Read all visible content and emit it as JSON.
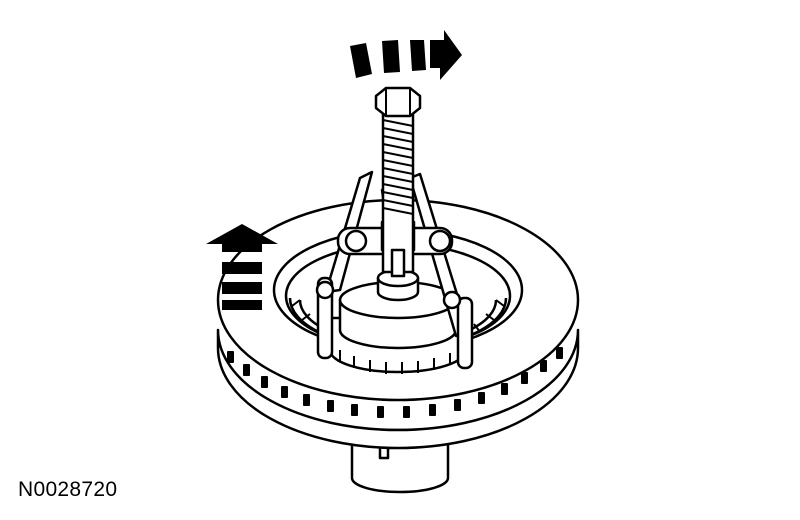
{
  "figure": {
    "id_label": "N0028720"
  },
  "colors": {
    "line": "#000000",
    "fill": "#ffffff"
  },
  "icons": [
    "rotate-clockwise-arrow-icon",
    "lift-up-arrow-icon"
  ]
}
